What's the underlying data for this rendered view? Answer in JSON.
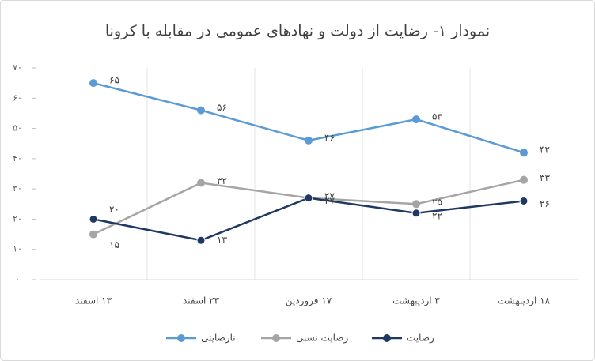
{
  "chart_data": {
    "type": "line",
    "title": "نمودار ۱- رضایت از دولت و نهادهای عمومی در مقابله با کرونا",
    "categories": [
      "۱۳ اسفند",
      "۲۳ اسفند",
      "۱۷ فروردین",
      "۳ اردیبهشت",
      "۱۸ اردیبهشت"
    ],
    "series": [
      {
        "name": "نارضایتی",
        "color": "#5b9bd5",
        "values": [
          65,
          56,
          46,
          53,
          42
        ],
        "value_labels": [
          "۶۵",
          "۵۶",
          "۴۶",
          "۵۳",
          "۴۲"
        ]
      },
      {
        "name": "رضایت نسبی",
        "color": "#a5a5a5",
        "values": [
          15,
          32,
          27,
          25,
          33
        ],
        "value_labels": [
          "۱۵",
          "۳۲",
          "۲۷",
          "۲۵",
          "۳۳"
        ]
      },
      {
        "name": "رضایت",
        "color": "#1f3864",
        "values": [
          20,
          13,
          27,
          22,
          26
        ],
        "value_labels": [
          "۲۰",
          "۱۳",
          "۲۷",
          "۲۲",
          "۲۶"
        ]
      }
    ],
    "ylim": [
      0,
      70
    ],
    "yticks": [
      {
        "value": 0,
        "label": "۰"
      },
      {
        "value": 10,
        "label": "۱۰"
      },
      {
        "value": 20,
        "label": "۲۰"
      },
      {
        "value": 30,
        "label": "۳۰"
      },
      {
        "value": 40,
        "label": "۴۰"
      },
      {
        "value": 50,
        "label": "۵۰"
      },
      {
        "value": 60,
        "label": "۶۰"
      },
      {
        "value": 70,
        "label": "۷۰"
      }
    ],
    "legend": "bottom"
  }
}
